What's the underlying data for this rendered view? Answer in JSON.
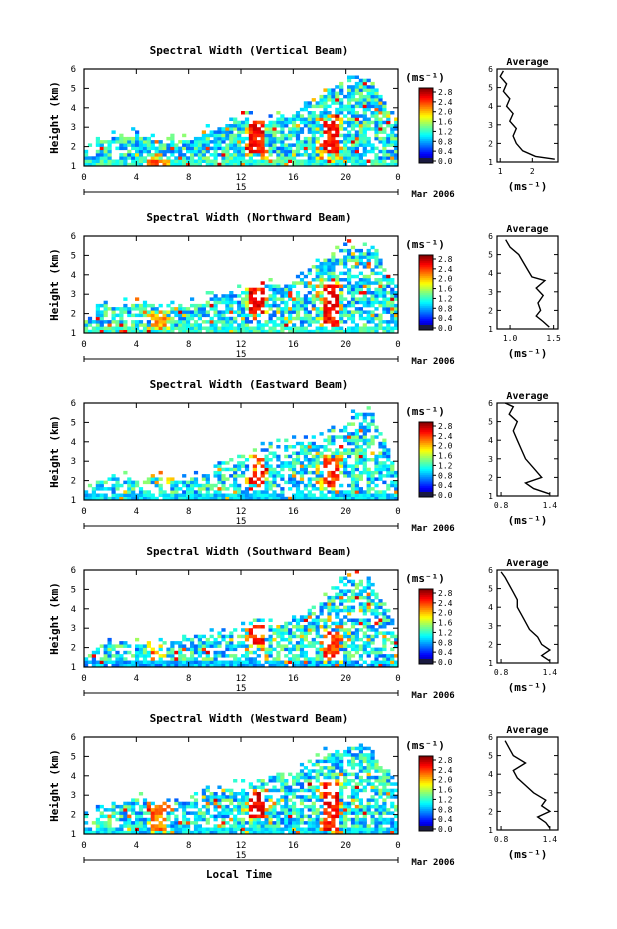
{
  "figure": {
    "xlabel": "Local Time",
    "date_label": "Mar 2006",
    "day_label": "15"
  },
  "chart_data": [
    {
      "type": "heatmap",
      "title": "Spectral Width (Vertical Beam)",
      "ylabel": "Height (km)",
      "xlabel": "Local Time",
      "xlim": [
        0,
        24
      ],
      "xticks": [
        "0",
        "4",
        "8",
        "12",
        "16",
        "20",
        "0"
      ],
      "ylim": [
        1,
        6
      ],
      "yticks": [
        "1",
        "2",
        "3",
        "4",
        "5",
        "6"
      ],
      "colorbar": {
        "label": "(ms⁻¹)",
        "ticks": [
          "0.0",
          "0.4",
          "0.8",
          "1.2",
          "1.6",
          "2.0",
          "2.4",
          "2.8"
        ],
        "range": [
          0,
          2.8
        ]
      },
      "features": [
        {
          "t": 13.2,
          "h0": 1.6,
          "h1": 3.5,
          "v": 2.6
        },
        {
          "t": 18.8,
          "h0": 1.6,
          "h1": 3.4,
          "v": 2.6
        },
        {
          "t": 5.5,
          "h0": 1.0,
          "h1": 1.4,
          "v": 2.4
        }
      ],
      "extent": [
        [
          0,
          2.2
        ],
        [
          2,
          2.4
        ],
        [
          4,
          2.6
        ],
        [
          6,
          2.3
        ],
        [
          8,
          2.4
        ],
        [
          10,
          2.8
        ],
        [
          12,
          3.4
        ],
        [
          14,
          3.3
        ],
        [
          16,
          3.6
        ],
        [
          18,
          4.4
        ],
        [
          19.5,
          5.3
        ],
        [
          21,
          5.6
        ],
        [
          22,
          5.4
        ],
        [
          24,
          3.0
        ]
      ],
      "density": 0.8,
      "base_width": 0.9,
      "average": {
        "title": "Average",
        "xlabel": "(ms⁻¹)",
        "xticks": [
          "1",
          "2"
        ],
        "xlim": [
          0.9,
          2.8
        ],
        "ylim": [
          1,
          6
        ],
        "yticks": [
          "1",
          "2",
          "3",
          "4",
          "5",
          "6"
        ],
        "profile": [
          [
            1.15,
            2.7
          ],
          [
            1.3,
            2.1
          ],
          [
            1.6,
            1.7
          ],
          [
            2.0,
            1.5
          ],
          [
            2.4,
            1.4
          ],
          [
            2.8,
            1.5
          ],
          [
            3.2,
            1.3
          ],
          [
            3.6,
            1.4
          ],
          [
            4.0,
            1.2
          ],
          [
            4.4,
            1.3
          ],
          [
            4.8,
            1.1
          ],
          [
            5.2,
            1.2
          ],
          [
            5.6,
            1.0
          ],
          [
            5.9,
            1.1
          ]
        ]
      }
    },
    {
      "type": "heatmap",
      "title": "Spectral Width (Northward Beam)",
      "ylabel": "Height (km)",
      "xlabel": "Local Time",
      "xlim": [
        0,
        24
      ],
      "xticks": [
        "0",
        "4",
        "8",
        "12",
        "16",
        "20",
        "0"
      ],
      "ylim": [
        1,
        6
      ],
      "yticks": [
        "1",
        "2",
        "3",
        "4",
        "5",
        "6"
      ],
      "colorbar": {
        "label": "(ms⁻¹)",
        "ticks": [
          "0.0",
          "0.4",
          "0.8",
          "1.2",
          "1.6",
          "2.0",
          "2.4",
          "2.8"
        ],
        "range": [
          0,
          2.8
        ]
      },
      "features": [
        {
          "t": 13.2,
          "h0": 2.0,
          "h1": 3.7,
          "v": 2.7
        },
        {
          "t": 18.8,
          "h0": 1.3,
          "h1": 3.5,
          "v": 2.6
        },
        {
          "t": 5.6,
          "h0": 1.3,
          "h1": 1.9,
          "v": 2.2
        }
      ],
      "extent": [
        [
          0,
          2.2
        ],
        [
          2,
          2.3
        ],
        [
          4,
          2.5
        ],
        [
          6,
          2.2
        ],
        [
          8,
          2.4
        ],
        [
          10,
          2.8
        ],
        [
          12,
          3.3
        ],
        [
          14,
          3.5
        ],
        [
          16,
          3.5
        ],
        [
          18,
          4.7
        ],
        [
          19.5,
          5.3
        ],
        [
          21,
          5.4
        ],
        [
          22,
          5.3
        ],
        [
          24,
          3.2
        ]
      ],
      "density": 0.72,
      "base_width": 0.9,
      "average": {
        "title": "Average",
        "xlabel": "(ms⁻¹)",
        "xticks": [
          "1.0",
          "1.5"
        ],
        "xlim": [
          0.85,
          1.55
        ],
        "ylim": [
          1,
          6
        ],
        "yticks": [
          "1",
          "2",
          "3",
          "4",
          "5",
          "6"
        ],
        "profile": [
          [
            1.1,
            1.45
          ],
          [
            1.4,
            1.38
          ],
          [
            1.7,
            1.3
          ],
          [
            2.0,
            1.35
          ],
          [
            2.4,
            1.32
          ],
          [
            2.8,
            1.38
          ],
          [
            3.2,
            1.3
          ],
          [
            3.6,
            1.4
          ],
          [
            3.8,
            1.25
          ],
          [
            4.2,
            1.2
          ],
          [
            4.6,
            1.15
          ],
          [
            5.0,
            1.1
          ],
          [
            5.4,
            1.0
          ],
          [
            5.8,
            0.95
          ]
        ]
      }
    },
    {
      "type": "heatmap",
      "title": "Spectral Width (Eastward Beam)",
      "ylabel": "Height (km)",
      "xlabel": "Local Time",
      "xlim": [
        0,
        24
      ],
      "xticks": [
        "0",
        "4",
        "8",
        "12",
        "16",
        "20",
        "0"
      ],
      "ylim": [
        1,
        6
      ],
      "yticks": [
        "1",
        "2",
        "3",
        "4",
        "5",
        "6"
      ],
      "colorbar": {
        "label": "(ms⁻¹)",
        "ticks": [
          "0.0",
          "0.4",
          "0.8",
          "1.2",
          "1.6",
          "2.0",
          "2.4",
          "2.8"
        ],
        "range": [
          0,
          2.8
        ]
      },
      "features": [
        {
          "t": 13.2,
          "h0": 1.9,
          "h1": 3.1,
          "v": 2.6
        },
        {
          "t": 18.8,
          "h0": 1.6,
          "h1": 3.2,
          "v": 2.5
        },
        {
          "t": 5.8,
          "h0": 2.1,
          "h1": 2.5,
          "v": 2.3
        }
      ],
      "extent": [
        [
          0,
          2.0
        ],
        [
          2,
          2.1
        ],
        [
          4,
          2.0
        ],
        [
          6,
          2.2
        ],
        [
          8,
          2.0
        ],
        [
          10,
          2.5
        ],
        [
          12,
          3.0
        ],
        [
          14,
          3.8
        ],
        [
          16,
          3.9
        ],
        [
          18,
          4.0
        ],
        [
          19.5,
          4.6
        ],
        [
          21,
          5.6
        ],
        [
          22,
          5.4
        ],
        [
          24,
          2.6
        ]
      ],
      "density": 0.64,
      "base_width": 0.7,
      "average": {
        "title": "Average",
        "xlabel": "(ms⁻¹)",
        "xticks": [
          "0.8",
          "1.4"
        ],
        "xlim": [
          0.75,
          1.5
        ],
        "ylim": [
          1,
          6
        ],
        "yticks": [
          "1",
          "2",
          "3",
          "4",
          "5",
          "6"
        ],
        "profile": [
          [
            1.1,
            1.4
          ],
          [
            1.4,
            1.2
          ],
          [
            1.7,
            1.1
          ],
          [
            2.0,
            1.3
          ],
          [
            2.5,
            1.2
          ],
          [
            3.0,
            1.1
          ],
          [
            3.5,
            1.05
          ],
          [
            4.0,
            1.0
          ],
          [
            4.5,
            0.95
          ],
          [
            5.0,
            1.0
          ],
          [
            5.4,
            0.9
          ],
          [
            5.8,
            0.95
          ],
          [
            6.0,
            0.85
          ]
        ]
      }
    },
    {
      "type": "heatmap",
      "title": "Spectral Width (Southward Beam)",
      "ylabel": "Height (km)",
      "xlabel": "Local Time",
      "xlim": [
        0,
        24
      ],
      "xticks": [
        "0",
        "4",
        "8",
        "12",
        "16",
        "20",
        "0"
      ],
      "ylim": [
        1,
        6
      ],
      "yticks": [
        "1",
        "2",
        "3",
        "4",
        "5",
        "6"
      ],
      "colorbar": {
        "label": "(ms⁻¹)",
        "ticks": [
          "0.0",
          "0.4",
          "0.8",
          "1.2",
          "1.6",
          "2.0",
          "2.4",
          "2.8"
        ],
        "range": [
          0,
          2.8
        ]
      },
      "features": [
        {
          "t": 13.2,
          "h0": 2.1,
          "h1": 3.2,
          "v": 2.6
        },
        {
          "t": 18.9,
          "h0": 1.4,
          "h1": 2.9,
          "v": 2.5
        },
        {
          "t": 5.7,
          "h0": 1.5,
          "h1": 1.9,
          "v": 2.0
        }
      ],
      "extent": [
        [
          0,
          2.0
        ],
        [
          2,
          2.2
        ],
        [
          4,
          2.2
        ],
        [
          6,
          2.1
        ],
        [
          8,
          2.5
        ],
        [
          10,
          2.7
        ],
        [
          12,
          3.0
        ],
        [
          14,
          3.2
        ],
        [
          16,
          3.3
        ],
        [
          18,
          4.0
        ],
        [
          19.5,
          5.3
        ],
        [
          21,
          5.6
        ],
        [
          22,
          5.4
        ],
        [
          24,
          2.8
        ]
      ],
      "density": 0.66,
      "base_width": 0.6,
      "average": {
        "title": "Average",
        "xlabel": "(ms⁻¹)",
        "xticks": [
          "0.8",
          "1.4"
        ],
        "xlim": [
          0.75,
          1.5
        ],
        "ylim": [
          1,
          6
        ],
        "yticks": [
          "1",
          "2",
          "3",
          "4",
          "5",
          "6"
        ],
        "profile": [
          [
            1.1,
            1.4
          ],
          [
            1.4,
            1.3
          ],
          [
            1.7,
            1.4
          ],
          [
            2.0,
            1.3
          ],
          [
            2.4,
            1.25
          ],
          [
            2.8,
            1.15
          ],
          [
            3.2,
            1.1
          ],
          [
            3.6,
            1.05
          ],
          [
            4.0,
            1.0
          ],
          [
            4.4,
            1.0
          ],
          [
            4.8,
            0.95
          ],
          [
            5.2,
            0.9
          ],
          [
            5.6,
            0.85
          ],
          [
            5.9,
            0.8
          ]
        ]
      }
    },
    {
      "type": "heatmap",
      "title": "Spectral Width (Westward Beam)",
      "ylabel": "Height (km)",
      "xlabel": "Local Time",
      "xlim": [
        0,
        24
      ],
      "xticks": [
        "0",
        "4",
        "8",
        "12",
        "16",
        "20",
        "0"
      ],
      "ylim": [
        1,
        6
      ],
      "yticks": [
        "1",
        "2",
        "3",
        "4",
        "5",
        "6"
      ],
      "colorbar": {
        "label": "(ms⁻¹)",
        "ticks": [
          "0.0",
          "0.4",
          "0.8",
          "1.2",
          "1.6",
          "2.0",
          "2.4",
          "2.8"
        ],
        "range": [
          0,
          2.8
        ]
      },
      "features": [
        {
          "t": 13.3,
          "h0": 1.8,
          "h1": 3.2,
          "v": 2.7
        },
        {
          "t": 18.9,
          "h0": 1.2,
          "h1": 3.7,
          "v": 2.6
        },
        {
          "t": 5.8,
          "h0": 1.2,
          "h1": 2.5,
          "v": 2.3
        }
      ],
      "extent": [
        [
          0,
          2.5
        ],
        [
          2,
          2.4
        ],
        [
          4,
          2.8
        ],
        [
          6,
          2.6
        ],
        [
          8,
          2.6
        ],
        [
          10,
          3.2
        ],
        [
          12,
          3.4
        ],
        [
          14,
          4.0
        ],
        [
          16,
          4.0
        ],
        [
          18,
          4.9
        ],
        [
          19.5,
          5.3
        ],
        [
          21,
          5.6
        ],
        [
          22,
          5.4
        ],
        [
          24,
          3.2
        ]
      ],
      "density": 0.7,
      "base_width": 0.7,
      "average": {
        "title": "Average",
        "xlabel": "(ms⁻¹)",
        "xticks": [
          "0.8",
          "1.4"
        ],
        "xlim": [
          0.75,
          1.5
        ],
        "ylim": [
          1,
          6
        ],
        "yticks": [
          "1",
          "2",
          "3",
          "4",
          "5",
          "6"
        ],
        "profile": [
          [
            1.1,
            1.4
          ],
          [
            1.4,
            1.35
          ],
          [
            1.7,
            1.25
          ],
          [
            2.0,
            1.4
          ],
          [
            2.3,
            1.3
          ],
          [
            2.6,
            1.35
          ],
          [
            3.0,
            1.2
          ],
          [
            3.4,
            1.1
          ],
          [
            3.8,
            1.0
          ],
          [
            4.2,
            0.95
          ],
          [
            4.6,
            1.1
          ],
          [
            5.0,
            0.95
          ],
          [
            5.4,
            0.9
          ],
          [
            5.8,
            0.85
          ]
        ]
      }
    }
  ]
}
